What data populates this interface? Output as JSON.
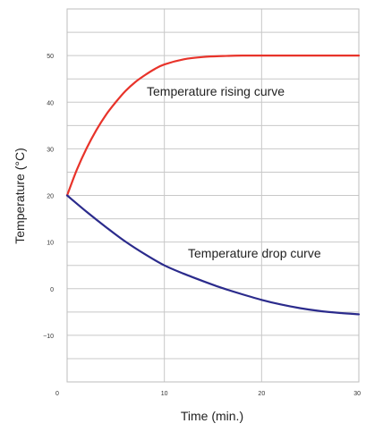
{
  "chart_data": {
    "type": "line",
    "xlabel": "Time (min.)",
    "ylabel": "Temperature (°C)",
    "xlim": [
      0,
      30
    ],
    "ylim": [
      -20,
      60
    ],
    "x_ticks": [
      0,
      10,
      20,
      30
    ],
    "y_ticks": [
      -10,
      0,
      10,
      20,
      30,
      40,
      50
    ],
    "grid": true,
    "series": [
      {
        "name": "Temperature rising curve",
        "color": "#e8332a",
        "x": [
          0,
          1,
          2,
          3,
          4,
          5,
          6,
          7,
          8,
          9,
          10,
          12,
          14,
          16,
          18,
          20,
          22,
          24,
          26,
          28,
          30
        ],
        "y": [
          20,
          25.5,
          30.1,
          34,
          37.3,
          40,
          42.4,
          44.3,
          45.8,
          47.1,
          48.1,
          49.2,
          49.7,
          49.9,
          50,
          50,
          50,
          50,
          50,
          50,
          50
        ]
      },
      {
        "name": "Temperature drop curve",
        "color": "#2b2b8c",
        "x": [
          0,
          2,
          4,
          6,
          8,
          10,
          12,
          14,
          16,
          18,
          20,
          22,
          24,
          26,
          28,
          30
        ],
        "y": [
          20,
          16.5,
          13.2,
          10.1,
          7.4,
          5,
          3.2,
          1.6,
          0.1,
          -1.2,
          -2.4,
          -3.4,
          -4.2,
          -4.8,
          -5.2,
          -5.5
        ]
      }
    ]
  }
}
